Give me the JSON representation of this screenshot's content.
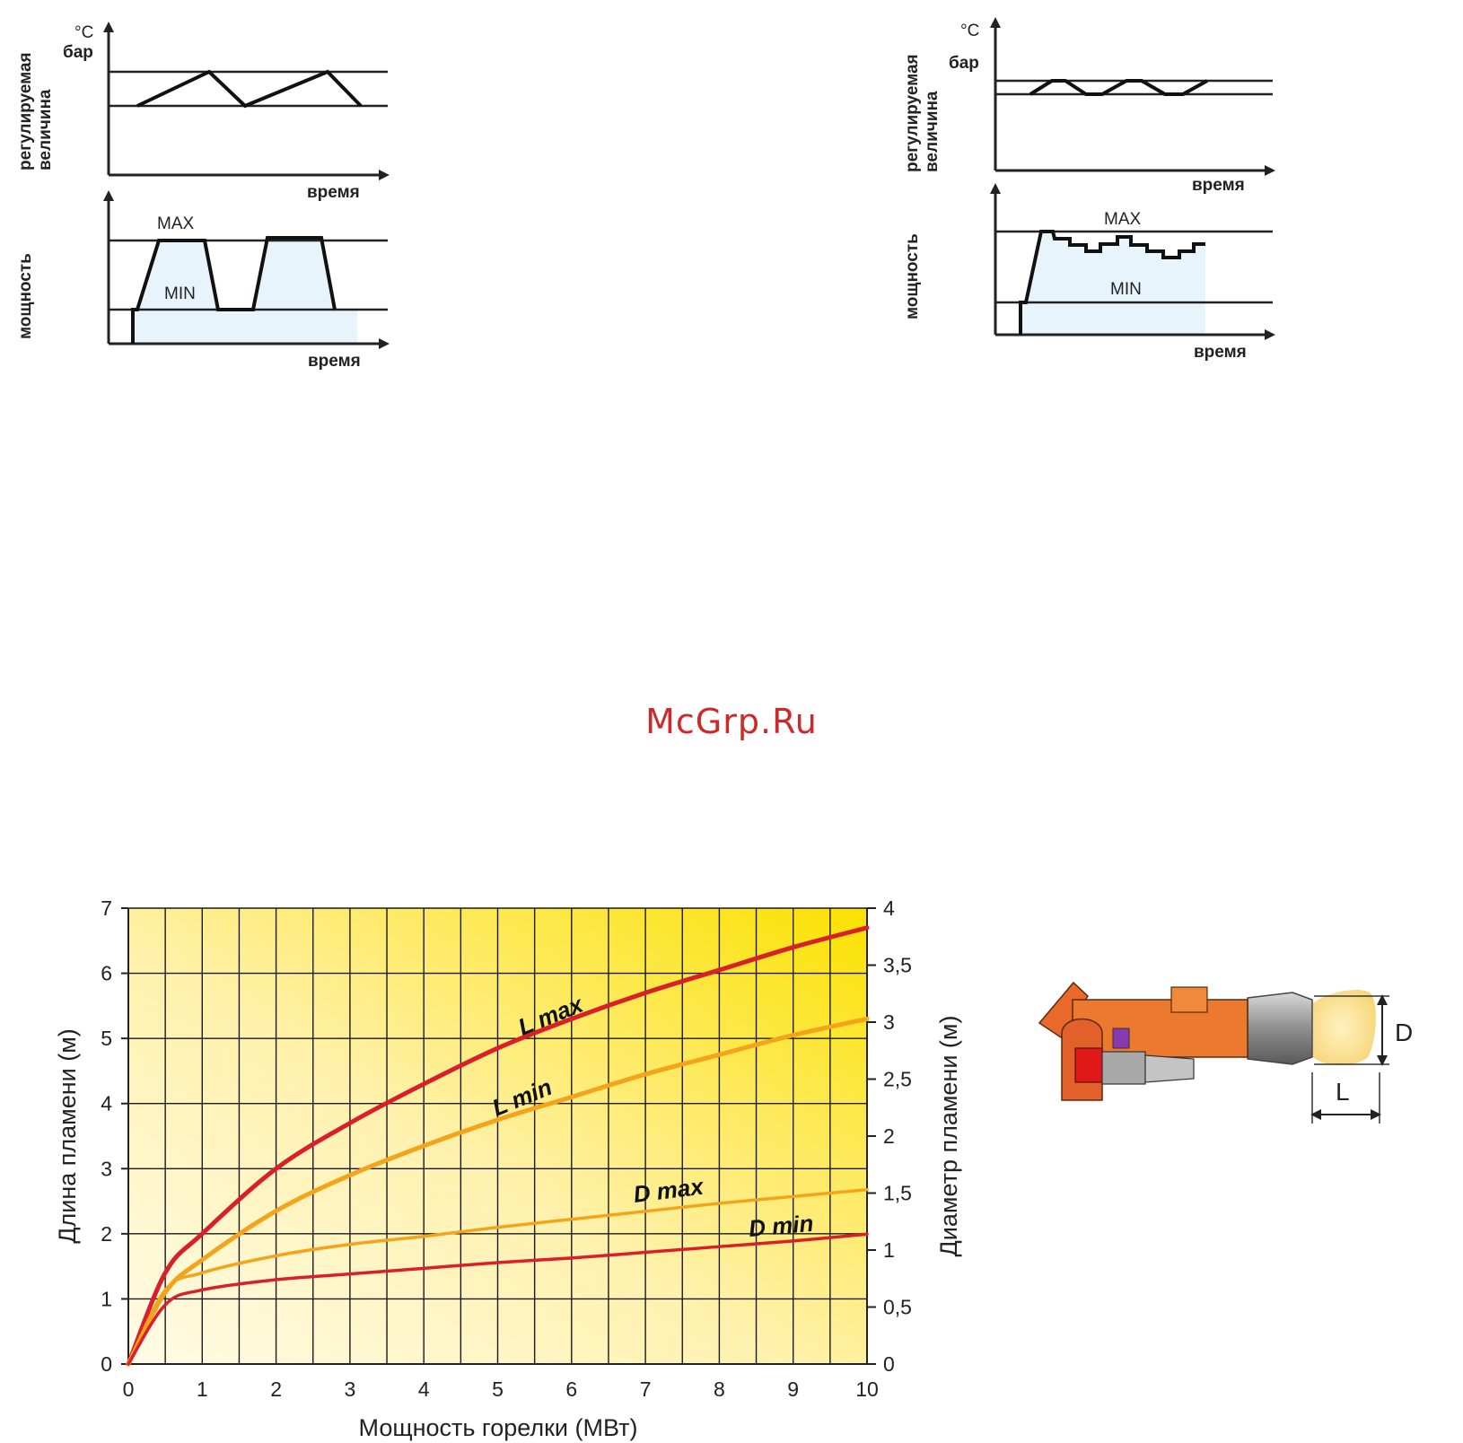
{
  "watermark": "McGrp.Ru",
  "control_diagrams": [
    {
      "top": {
        "unit_line1": "°C",
        "unit_line2": "бар",
        "ylabel_line1": "регулируемая",
        "ylabel_line2": "величина",
        "xlabel": "время"
      },
      "bottom": {
        "ylabel": "мощность",
        "xlabel": "время",
        "max_label": "MAX",
        "min_label": "MIN"
      }
    },
    {
      "top": {
        "unit_line1": "°C",
        "unit_line2": "бар",
        "ylabel_line1": "регулируемая",
        "ylabel_line2": "величина",
        "xlabel": "время"
      },
      "bottom": {
        "ylabel": "мощность",
        "xlabel": "время",
        "max_label": "MAX",
        "min_label": "MIN"
      }
    }
  ],
  "chart_data": {
    "type": "line",
    "xlabel": "Мощность горелки (МВт)",
    "ylabel": "Длина пламени (м)",
    "y2label": "Диаметр пламени (м)",
    "xlim": [
      0,
      10
    ],
    "ylim": [
      0,
      7
    ],
    "y2lim": [
      0,
      4
    ],
    "x_ticks": [
      "0",
      "1",
      "2",
      "3",
      "4",
      "5",
      "6",
      "7",
      "8",
      "9",
      "10"
    ],
    "y_ticks": [
      "0",
      "1",
      "2",
      "3",
      "4",
      "5",
      "6",
      "7"
    ],
    "y2_ticks": [
      "0",
      "0,5",
      "1",
      "1,5",
      "2",
      "2,5",
      "3",
      "3,5",
      "4"
    ],
    "grid": true,
    "series": [
      {
        "name": "L max",
        "axis": "left",
        "color": "#d9202a",
        "x": [
          0,
          0.5,
          1,
          2,
          3,
          4,
          5,
          6,
          7,
          8,
          9,
          10
        ],
        "y": [
          0,
          1.4,
          2.0,
          3.0,
          3.7,
          4.3,
          4.85,
          5.3,
          5.7,
          6.05,
          6.4,
          6.7
        ]
      },
      {
        "name": "L min",
        "axis": "left",
        "color": "#f2a41a",
        "x": [
          0,
          0.5,
          1,
          2,
          3,
          4,
          5,
          6,
          7,
          8,
          9,
          10
        ],
        "y": [
          0,
          1.1,
          1.6,
          2.35,
          2.9,
          3.35,
          3.75,
          4.1,
          4.45,
          4.75,
          5.05,
          5.3
        ]
      },
      {
        "name": "D max",
        "axis": "right",
        "color": "#f2a41a",
        "x": [
          0,
          0.5,
          1,
          2,
          3,
          4,
          5,
          6,
          7,
          8,
          9,
          10
        ],
        "y": [
          0,
          0.65,
          0.8,
          0.95,
          1.05,
          1.12,
          1.2,
          1.27,
          1.34,
          1.41,
          1.47,
          1.53
        ]
      },
      {
        "name": "D min",
        "axis": "right",
        "color": "#d9202a",
        "x": [
          0,
          0.5,
          1,
          2,
          3,
          4,
          5,
          6,
          7,
          8,
          9,
          10
        ],
        "y": [
          0,
          0.52,
          0.65,
          0.74,
          0.79,
          0.84,
          0.89,
          0.93,
          0.98,
          1.03,
          1.08,
          1.14
        ]
      }
    ]
  },
  "burner": {
    "label_d": "D",
    "label_l": "L"
  }
}
